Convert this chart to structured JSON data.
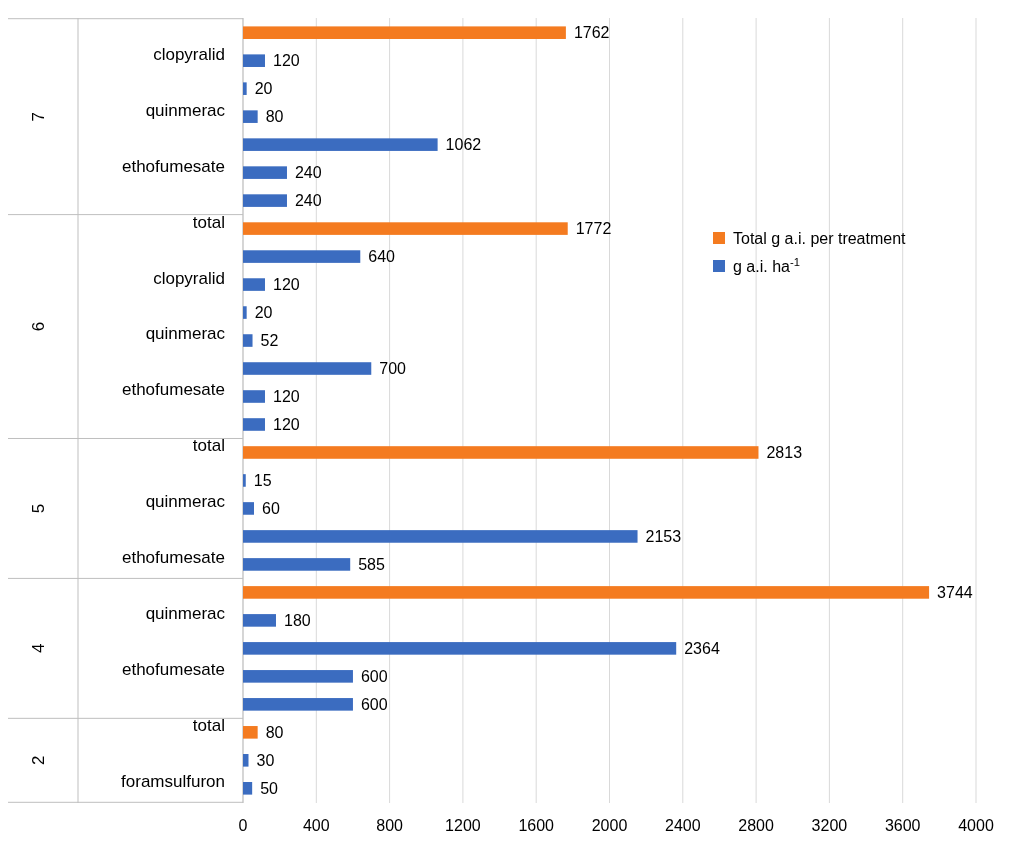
{
  "chart_data": {
    "type": "bar",
    "orientation": "horizontal",
    "categories": [
      null,
      "clopyralid",
      null,
      "quinmerac",
      null,
      "ethofumesate",
      null,
      "total",
      null,
      "clopyralid",
      null,
      "quinmerac",
      null,
      "ethofumesate",
      null,
      "total",
      null,
      "quinmerac",
      null,
      "ethofumesate",
      null,
      "quinmerac",
      null,
      "ethofumesate",
      null,
      "total",
      null,
      "foramsulfuron"
    ],
    "series": [
      {
        "name": "Total g a.i. per treatment",
        "color": "#f47b20",
        "values": [
          1762,
          null,
          null,
          null,
          null,
          null,
          null,
          1772,
          null,
          null,
          null,
          null,
          null,
          null,
          null,
          2813,
          null,
          null,
          null,
          null,
          3744,
          null,
          null,
          null,
          null,
          80,
          null,
          null
        ]
      },
      {
        "name": "g a.i. ha$^{-1}$",
        "color": "#3b6cc0",
        "values": [
          null,
          120,
          20,
          80,
          1062,
          240,
          240,
          null,
          640,
          120,
          20,
          52,
          700,
          120,
          120,
          null,
          15,
          60,
          2153,
          585,
          null,
          180,
          2364,
          600,
          600,
          null,
          30,
          50
        ]
      }
    ],
    "annotations": [
      "7",
      "6",
      "5",
      "4",
      "2"
    ],
    "xlim": [
      0,
      4000
    ],
    "xticks": [
      0,
      400,
      800,
      1200,
      1600,
      2000,
      2400,
      2800,
      3200,
      3600,
      4000
    ],
    "grid": "x",
    "legend": "top right",
    "data_labels": true
  }
}
